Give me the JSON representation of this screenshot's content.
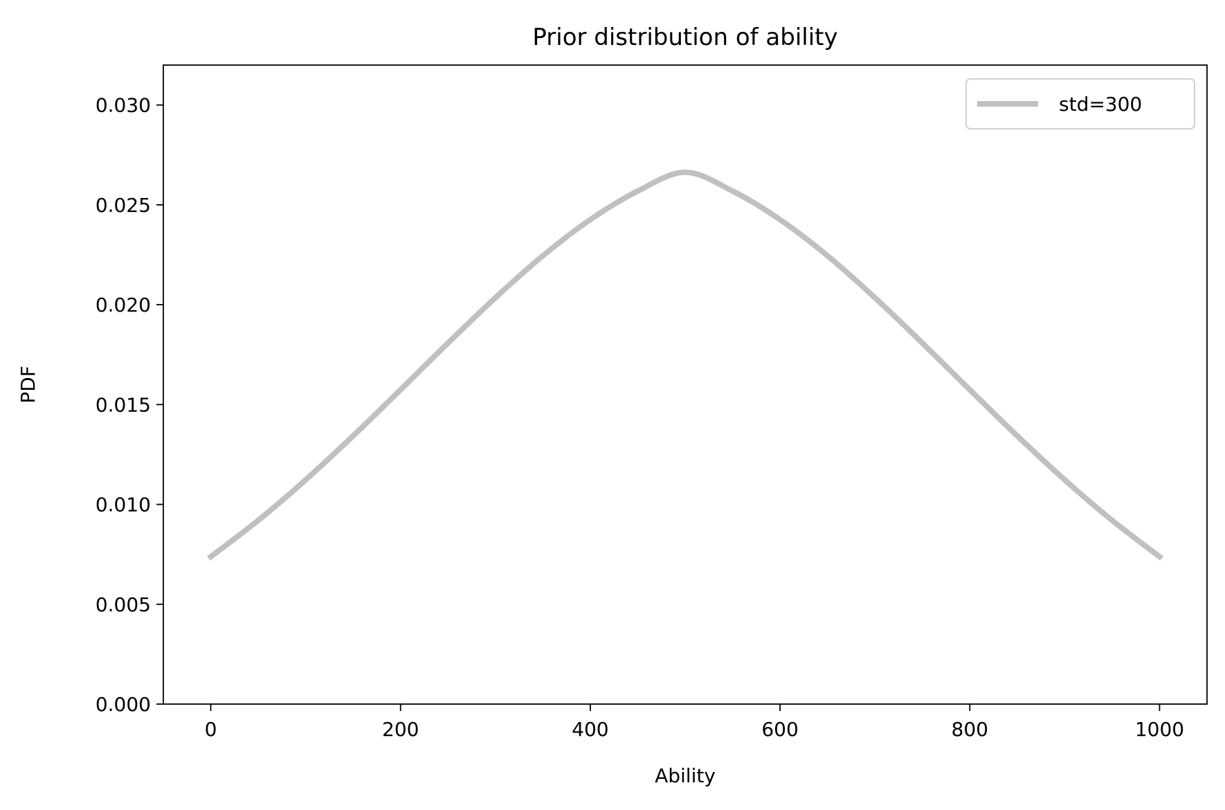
{
  "chart_data": {
    "type": "line",
    "title": "Prior distribution of ability",
    "xlabel": "Ability",
    "ylabel": "PDF",
    "xlim": [
      -50,
      1050
    ],
    "ylim": [
      0,
      0.032
    ],
    "xticks": [
      0,
      200,
      400,
      600,
      800,
      1000
    ],
    "xtick_labels": [
      "0",
      "200",
      "400",
      "600",
      "800",
      "1000"
    ],
    "yticks": [
      0,
      0.005,
      0.01,
      0.015,
      0.02,
      0.025,
      0.03
    ],
    "ytick_labels": [
      "0.000",
      "0.005",
      "0.010",
      "0.015",
      "0.020",
      "0.025",
      "0.030"
    ],
    "grid": false,
    "legend_position": "top-right",
    "series": [
      {
        "name": "std=300",
        "color": "#c0c0c0",
        "x": [
          0,
          50,
          100,
          150,
          200,
          250,
          300,
          350,
          400,
          450,
          500,
          550,
          600,
          650,
          700,
          750,
          800,
          850,
          900,
          950,
          1000
        ],
        "y": [
          0.00738,
          0.0092,
          0.01123,
          0.01343,
          0.01574,
          0.01808,
          0.02035,
          0.02245,
          0.02426,
          0.02569,
          0.02663,
          0.02569,
          0.02426,
          0.02245,
          0.02035,
          0.01808,
          0.01574,
          0.01343,
          0.01123,
          0.0092,
          0.00738
        ],
        "y_peak_note": ""
      }
    ]
  }
}
